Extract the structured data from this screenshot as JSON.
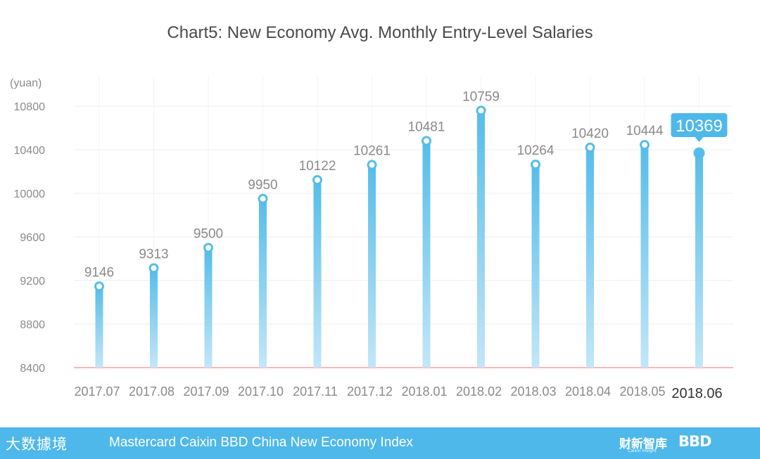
{
  "chart_data": {
    "type": "bar",
    "title": "Chart5:  New Economy Avg. Monthly Entry-Level Salaries",
    "ylabel": "(yuan)",
    "xlabel": "",
    "categories": [
      "2017.07",
      "2017.08",
      "2017.09",
      "2017.10",
      "2017.11",
      "2017.12",
      "2018.01",
      "2018.02",
      "2018.03",
      "2018.04",
      "2018.05",
      "2018.06"
    ],
    "values": [
      9146,
      9313,
      9500,
      9950,
      10122,
      10261,
      10481,
      10759,
      10264,
      10420,
      10444,
      10369
    ],
    "ylim": [
      8400,
      10800
    ],
    "yticks": [
      8400,
      8800,
      9200,
      9600,
      10000,
      10400,
      10800
    ],
    "highlight_index": 11,
    "grid": true,
    "colors": {
      "bar_top": "#55bde9",
      "bar_bottom": "#c3e6f8",
      "baseline": "#f2a1a1",
      "callout": "#4fb8ea",
      "value_label": "#8a8a8a",
      "axis_label": "#8a8a8a",
      "highlight_label": "#333333"
    }
  },
  "footer": {
    "logo_left": "大数據境",
    "text": "Mastercard Caixin BBD China New Economy Index",
    "logo_caixin": "财新智库",
    "logo_caixin_sub": "Caixin Insight",
    "logo_bbd": "BBD"
  }
}
